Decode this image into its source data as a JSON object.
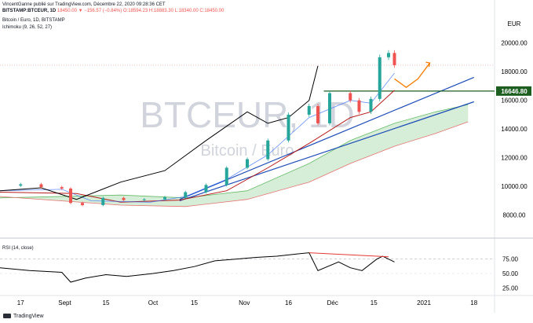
{
  "header": {
    "line1": "VincentGanne publié sur TradingView.com, Décembre 22, 2020 09:28:36 CET",
    "line2_prefix": "BITSTAMP:BTCEUR, 1D",
    "ohlc": "18450.00 ▼ −156.57 (−0.84%) O:18594.23 H:18883.30 L:18340.00 C:18450.00",
    "line3": "Bitcoin / Euro, 1D, BITSTAMP",
    "line4": "Ichimoku (9, 26, 52, 27)"
  },
  "watermark": {
    "symbol": "BTCEUR, 1D",
    "name": "Bitcoin / Euro"
  },
  "rsi_label": "RSI (14, close)",
  "footer_logo": "TradingView",
  "colors": {
    "up": "#26a69a",
    "down": "#ef5350",
    "tenkan": "#2962ff",
    "kijun": "#b71c1c",
    "lagging": "#000000",
    "cloud_up": "#a5d6a7",
    "cloud_down": "#ef9a9a",
    "trend": "#1e4db7",
    "projection": "#f57c00",
    "level": "#1b5e20",
    "rsi": "#000000"
  },
  "chart_data": [
    {
      "type": "candlestick",
      "title": "Bitcoin / Euro, 1D, BITSTAMP",
      "y_axis_title": "EUR",
      "yticks": [
        8000,
        10000,
        12000,
        14000,
        16000,
        18000,
        20000
      ],
      "ylim": [
        7000,
        20800
      ],
      "xticks": [
        {
          "label": "17",
          "date": "2020-08-17"
        },
        {
          "label": "Sept",
          "date": "2020-09-01"
        },
        {
          "label": "15",
          "date": "2020-09-15"
        },
        {
          "label": "Oct",
          "date": "2020-10-01"
        },
        {
          "label": "15",
          "date": "2020-10-15"
        },
        {
          "label": "Nov",
          "date": "2020-11-01"
        },
        {
          "label": "16",
          "date": "2020-11-16"
        },
        {
          "label": "Déc",
          "date": "2020-12-01"
        },
        {
          "label": "15",
          "date": "2020-12-15"
        },
        {
          "label": "2021",
          "date": "2021-01-01"
        },
        {
          "label": "18",
          "date": "2021-01-18"
        }
      ],
      "price_label": 16646.8,
      "horizontal_level": 16646.8,
      "last_close": 18450.0,
      "close_series": [
        [
          "2020-08-10",
          10050
        ],
        [
          "2020-08-17",
          10150
        ],
        [
          "2020-08-24",
          9950
        ],
        [
          "2020-08-31",
          9850
        ],
        [
          "2020-09-03",
          8850
        ],
        [
          "2020-09-07",
          8700
        ],
        [
          "2020-09-14",
          9200
        ],
        [
          "2020-09-21",
          9050
        ],
        [
          "2020-09-28",
          9100
        ],
        [
          "2020-10-05",
          9250
        ],
        [
          "2020-10-12",
          9600
        ],
        [
          "2020-10-19",
          10100
        ],
        [
          "2020-10-26",
          11300
        ],
        [
          "2020-11-02",
          11900
        ],
        [
          "2020-11-09",
          13200
        ],
        [
          "2020-11-16",
          15000
        ],
        [
          "2020-11-23",
          15600
        ],
        [
          "2020-11-26",
          14400
        ],
        [
          "2020-11-30",
          16500
        ],
        [
          "2020-12-07",
          16000
        ],
        [
          "2020-12-10",
          15200
        ],
        [
          "2020-12-14",
          16100
        ],
        [
          "2020-12-17",
          19000
        ],
        [
          "2020-12-20",
          19300
        ],
        [
          "2020-12-22",
          18450
        ]
      ],
      "ichimoku": {
        "tenkan": [
          [
            "2020-08-10",
            9700
          ],
          [
            "2020-08-31",
            9800
          ],
          [
            "2020-09-10",
            9000
          ],
          [
            "2020-09-30",
            8900
          ],
          [
            "2020-10-12",
            9300
          ],
          [
            "2020-10-26",
            10500
          ],
          [
            "2020-11-09",
            12200
          ],
          [
            "2020-11-23",
            14800
          ],
          [
            "2020-12-07",
            16000
          ],
          [
            "2020-12-14",
            15800
          ],
          [
            "2020-12-22",
            17900
          ]
        ],
        "kijun": [
          [
            "2020-08-10",
            9600
          ],
          [
            "2020-09-05",
            9500
          ],
          [
            "2020-09-20",
            8900
          ],
          [
            "2020-10-10",
            9050
          ],
          [
            "2020-10-26",
            9700
          ],
          [
            "2020-11-09",
            11300
          ],
          [
            "2020-11-23",
            13000
          ],
          [
            "2020-12-07",
            14800
          ],
          [
            "2020-12-14",
            15200
          ],
          [
            "2020-12-22",
            16700
          ]
        ],
        "lagging": [
          [
            "2020-08-10",
            9700
          ],
          [
            "2020-08-24",
            9900
          ],
          [
            "2020-09-05",
            9100
          ],
          [
            "2020-09-20",
            10300
          ],
          [
            "2020-10-05",
            11100
          ],
          [
            "2020-10-19",
            13200
          ],
          [
            "2020-11-02",
            15200
          ],
          [
            "2020-11-09",
            14400
          ],
          [
            "2020-11-16",
            14800
          ],
          [
            "2020-11-23",
            16000
          ],
          [
            "2020-11-26",
            18400
          ]
        ],
        "senkou_a": [
          [
            "2020-08-10",
            9200
          ],
          [
            "2020-09-20",
            9400
          ],
          [
            "2020-10-12",
            9200
          ],
          [
            "2020-11-02",
            9700
          ],
          [
            "2020-11-23",
            11600
          ],
          [
            "2020-12-07",
            13200
          ],
          [
            "2020-12-22",
            14400
          ],
          [
            "2021-01-05",
            15200
          ],
          [
            "2021-01-16",
            15700
          ]
        ],
        "senkou_b": [
          [
            "2020-08-10",
            9300
          ],
          [
            "2020-09-20",
            8700
          ],
          [
            "2020-10-12",
            8600
          ],
          [
            "2020-11-02",
            9100
          ],
          [
            "2020-11-23",
            10300
          ],
          [
            "2020-12-07",
            11600
          ],
          [
            "2020-12-22",
            12800
          ],
          [
            "2021-01-05",
            13700
          ],
          [
            "2021-01-16",
            14500
          ]
        ]
      },
      "trendlines": [
        [
          [
            "2020-10-10",
            9100
          ],
          [
            "2021-01-18",
            17600
          ]
        ],
        [
          [
            "2020-10-10",
            9000
          ],
          [
            "2021-01-18",
            15900
          ]
        ]
      ],
      "projection": [
        [
          "2020-12-22",
          17500
        ],
        [
          "2020-12-26",
          16900
        ],
        [
          "2020-12-30",
          17500
        ],
        [
          "2021-01-03",
          18600
        ]
      ]
    },
    {
      "type": "line",
      "title": "RSI (14, close)",
      "yticks": [
        25,
        50,
        75
      ],
      "ylim": [
        20,
        95
      ],
      "series": [
        {
          "name": "RSI (14, close)",
          "points": [
            [
              "2020-08-10",
              60
            ],
            [
              "2020-08-20",
              55
            ],
            [
              "2020-08-31",
              52
            ],
            [
              "2020-09-03",
              35
            ],
            [
              "2020-09-08",
              42
            ],
            [
              "2020-09-15",
              48
            ],
            [
              "2020-09-22",
              45
            ],
            [
              "2020-10-01",
              50
            ],
            [
              "2020-10-08",
              55
            ],
            [
              "2020-10-15",
              62
            ],
            [
              "2020-10-22",
              72
            ],
            [
              "2020-10-29",
              75
            ],
            [
              "2020-11-05",
              78
            ],
            [
              "2020-11-12",
              80
            ],
            [
              "2020-11-19",
              84
            ],
            [
              "2020-11-23",
              86
            ],
            [
              "2020-11-26",
              55
            ],
            [
              "2020-12-03",
              70
            ],
            [
              "2020-12-07",
              60
            ],
            [
              "2020-12-11",
              55
            ],
            [
              "2020-12-16",
              75
            ],
            [
              "2020-12-18",
              80
            ],
            [
              "2020-12-22",
              70
            ]
          ]
        }
      ],
      "divergence": [
        [
          "2020-11-23",
          86
        ],
        [
          "2020-12-20",
          79
        ]
      ]
    }
  ]
}
